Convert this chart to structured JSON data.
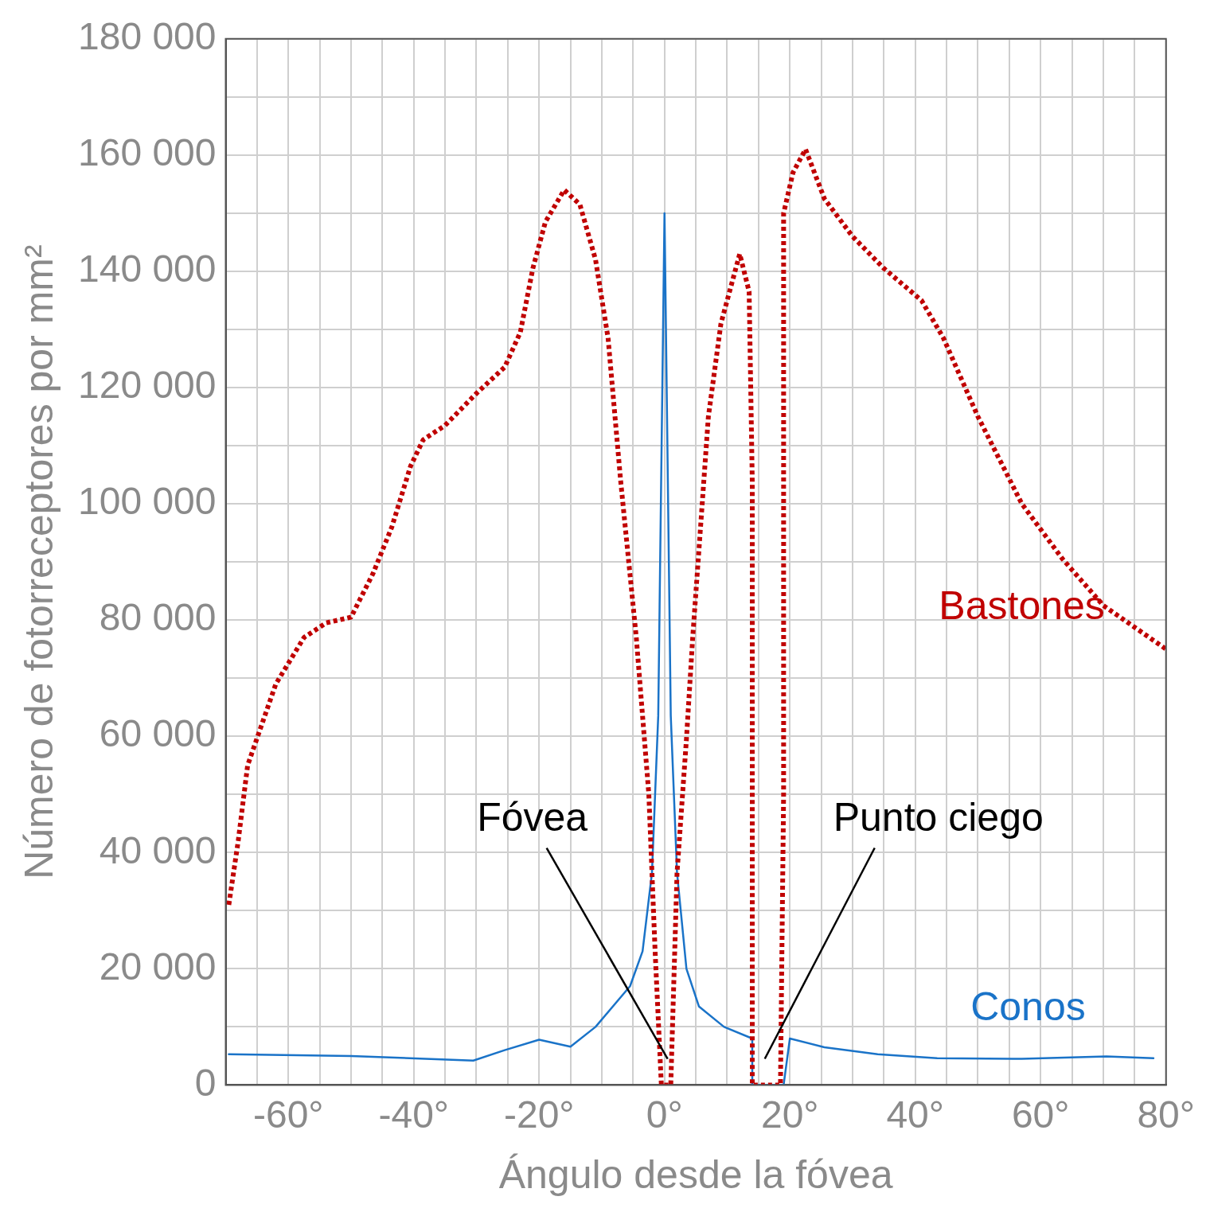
{
  "chart_data": {
    "type": "line",
    "xlabel": "Ángulo desde la fóvea",
    "ylabel": "Número de fotorreceptores por mm²",
    "xlim": [
      -70,
      80
    ],
    "ylim": [
      0,
      180000
    ],
    "xticks": [
      {
        "value": -70,
        "label": null
      },
      {
        "value": -65,
        "label": null
      },
      {
        "value": -60,
        "label": "-60°"
      },
      {
        "value": -55,
        "label": null
      },
      {
        "value": -50,
        "label": null
      },
      {
        "value": -45,
        "label": null
      },
      {
        "value": -40,
        "label": "-40°"
      },
      {
        "value": -35,
        "label": null
      },
      {
        "value": -30,
        "label": null
      },
      {
        "value": -25,
        "label": null
      },
      {
        "value": -20,
        "label": "-20°"
      },
      {
        "value": -15,
        "label": null
      },
      {
        "value": -10,
        "label": null
      },
      {
        "value": -5,
        "label": null
      },
      {
        "value": 0,
        "label": "0°"
      },
      {
        "value": 5,
        "label": null
      },
      {
        "value": 10,
        "label": null
      },
      {
        "value": 15,
        "label": null
      },
      {
        "value": 20,
        "label": "20°"
      },
      {
        "value": 25,
        "label": null
      },
      {
        "value": 30,
        "label": null
      },
      {
        "value": 35,
        "label": null
      },
      {
        "value": 40,
        "label": "40°"
      },
      {
        "value": 45,
        "label": null
      },
      {
        "value": 50,
        "label": null
      },
      {
        "value": 55,
        "label": null
      },
      {
        "value": 60,
        "label": "60°"
      },
      {
        "value": 65,
        "label": null
      },
      {
        "value": 70,
        "label": null
      },
      {
        "value": 75,
        "label": null
      },
      {
        "value": 80,
        "label": "80°"
      }
    ],
    "yticks": [
      {
        "value": 0,
        "label": "0"
      },
      {
        "value": 10000,
        "label": null
      },
      {
        "value": 20000,
        "label": "20 000"
      },
      {
        "value": 30000,
        "label": null
      },
      {
        "value": 40000,
        "label": "40 000"
      },
      {
        "value": 50000,
        "label": null
      },
      {
        "value": 60000,
        "label": "60 000"
      },
      {
        "value": 70000,
        "label": null
      },
      {
        "value": 80000,
        "label": "80 000"
      },
      {
        "value": 90000,
        "label": null
      },
      {
        "value": 100000,
        "label": "100 000"
      },
      {
        "value": 110000,
        "label": null
      },
      {
        "value": 120000,
        "label": "120 000"
      },
      {
        "value": 130000,
        "label": null
      },
      {
        "value": 140000,
        "label": "140 000"
      },
      {
        "value": 150000,
        "label": null
      },
      {
        "value": 160000,
        "label": "160 000"
      },
      {
        "value": 170000,
        "label": null
      },
      {
        "value": 180000,
        "label": "180 000"
      }
    ],
    "grid": true,
    "legend": false,
    "marker": "none",
    "series": [
      {
        "name": "Bastones",
        "color": "#c00000",
        "line_style": "dotted",
        "x": [
          -69.5,
          -68,
          -66.5,
          -62,
          -57.5,
          -54,
          -50,
          -46.5,
          -43.5,
          -40.5,
          -38.5,
          -35,
          -30,
          -25.5,
          -23,
          -21,
          -19,
          -16,
          -13.5,
          -11,
          -9,
          -7,
          -4.5,
          -2.5,
          -1.5,
          -0.5,
          1,
          2,
          3.5,
          4.5,
          7,
          9,
          12,
          13.5,
          14,
          14,
          18.5,
          19,
          19,
          20.5,
          22.5,
          25.5,
          30,
          35,
          41,
          44.5,
          50,
          57,
          63.5,
          70,
          80
        ],
        "values": [
          31000,
          42000,
          55000,
          69000,
          77000,
          79500,
          80500,
          88000,
          96000,
          106500,
          111000,
          113500,
          119000,
          123500,
          129500,
          140500,
          148500,
          154000,
          151500,
          142000,
          128500,
          104000,
          77000,
          50000,
          23000,
          0,
          0,
          36500,
          59500,
          77000,
          115000,
          131000,
          143000,
          136500,
          104000,
          0,
          0,
          50000,
          150000,
          157000,
          161000,
          152500,
          146000,
          140500,
          135000,
          128500,
          115000,
          100000,
          90500,
          82500,
          75000
        ]
      },
      {
        "name": "Conos",
        "color": "#1a73c8",
        "line_style": "solid",
        "x": [
          -69.5,
          -50,
          -30.5,
          -25.5,
          -20,
          -15,
          -11,
          -5.5,
          -3.5,
          -2,
          -1,
          0,
          1,
          2,
          3.5,
          5.5,
          9.5,
          14,
          14,
          19,
          20,
          25.5,
          34,
          43.5,
          57,
          70.5,
          78
        ],
        "values": [
          5300,
          5000,
          4200,
          6000,
          7800,
          6600,
          10000,
          17000,
          23000,
          36500,
          63500,
          150000,
          63500,
          36500,
          20000,
          13500,
          10000,
          8000,
          0,
          0,
          8000,
          6500,
          5300,
          4600,
          4500,
          4900,
          4600
        ]
      }
    ],
    "annotations": [
      {
        "text": "Fóvea",
        "x": 0.5,
        "y": 4500
      },
      "Punto ciego"
    ]
  }
}
